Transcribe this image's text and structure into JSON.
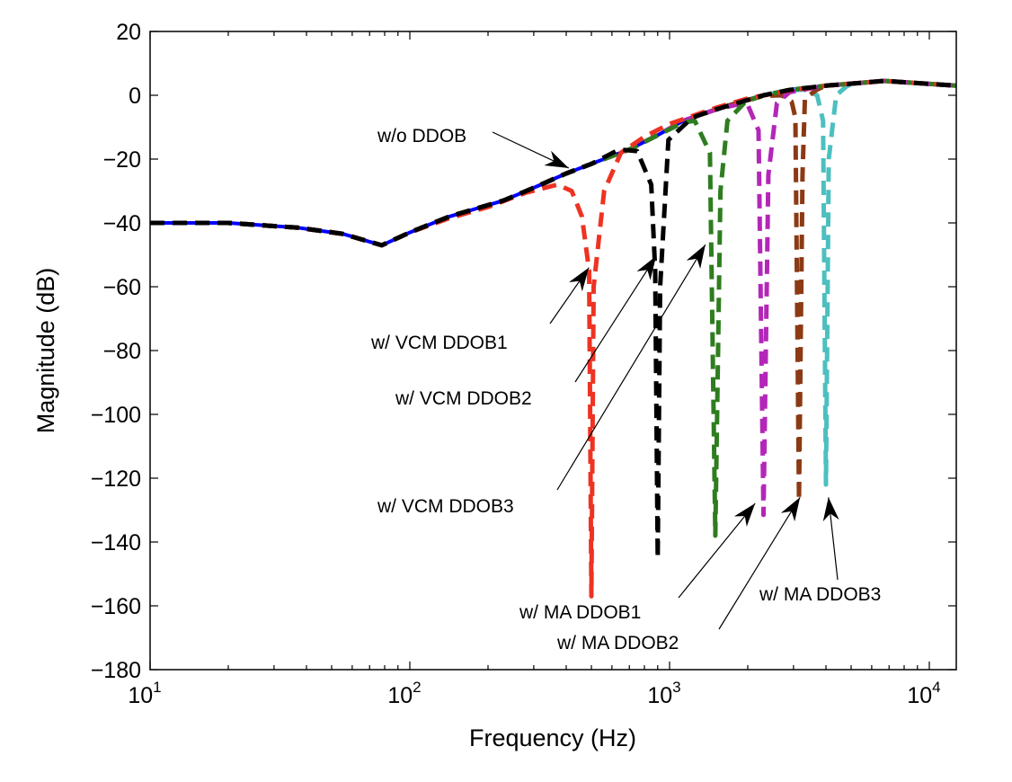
{
  "chart_data": {
    "type": "line",
    "title": "",
    "xlabel": "Frequency (Hz)",
    "ylabel": "Magnitude (dB)",
    "xscale": "log",
    "xlim": [
      10,
      12700
    ],
    "ylim": [
      -180,
      20
    ],
    "grid": false,
    "legend": "none",
    "x_ticks": [
      {
        "value": 10,
        "base": "10",
        "exp": "1"
      },
      {
        "value": 100,
        "base": "10",
        "exp": "2"
      },
      {
        "value": 1000,
        "base": "10",
        "exp": "3"
      },
      {
        "value": 10000,
        "base": "10",
        "exp": "4"
      }
    ],
    "y_ticks": [
      {
        "value": 20,
        "label": "20"
      },
      {
        "value": 0,
        "label": "0"
      },
      {
        "value": -20,
        "label": "−20"
      },
      {
        "value": -40,
        "label": "−40"
      },
      {
        "value": -60,
        "label": "−60"
      },
      {
        "value": -80,
        "label": "−80"
      },
      {
        "value": -100,
        "label": "−100"
      },
      {
        "value": -120,
        "label": "−120"
      },
      {
        "value": -140,
        "label": "−140"
      },
      {
        "value": -160,
        "label": "−160"
      },
      {
        "value": -180,
        "label": "−180"
      }
    ],
    "series": [
      {
        "name": "w/o DDOB",
        "color": "#0000ff",
        "style": "solid",
        "x": [
          10,
          20,
          37,
          55,
          78,
          100,
          142,
          229,
          300,
          400,
          500,
          700,
          900,
          1130,
          1500,
          1800,
          2300,
          2900,
          4000,
          5100,
          6700,
          12700
        ],
        "y": [
          -40,
          -40,
          -41.5,
          -43.4,
          -47,
          -43,
          -38,
          -33,
          -29,
          -24.5,
          -21.5,
          -17,
          -12.5,
          -8,
          -4.5,
          -2.5,
          0,
          1.7,
          3,
          3.7,
          4.5,
          3
        ]
      },
      {
        "name": "w/ MA DDOB3",
        "color": "#4dbfbf",
        "style": "dashed",
        "x": [
          10,
          20,
          37,
          55,
          78,
          100,
          142,
          229,
          300,
          400,
          500,
          700,
          900,
          1130,
          1500,
          1800,
          2300,
          2900,
          3300,
          3700,
          3900,
          4000,
          4100,
          4380,
          4800,
          5100,
          6700,
          12700
        ],
        "y": [
          -40,
          -40,
          -41.5,
          -43.4,
          -47,
          -43,
          -38,
          -33,
          -29,
          -24.5,
          -21.5,
          -17,
          -12.5,
          -8,
          -4.5,
          -2.5,
          0,
          1.5,
          1.8,
          0,
          -8,
          -122,
          -20,
          0,
          2.8,
          3.7,
          4.5,
          3
        ]
      },
      {
        "name": "w/ MA DDOB2",
        "color": "#8b3a14",
        "style": "dashed",
        "x": [
          10,
          20,
          37,
          55,
          78,
          100,
          142,
          229,
          300,
          400,
          500,
          700,
          900,
          1130,
          1500,
          1800,
          2300,
          2700,
          2950,
          3050,
          3150,
          3250,
          3320,
          3700,
          4000,
          5100,
          6700,
          12700
        ],
        "y": [
          -40,
          -40,
          -41.5,
          -43.4,
          -47,
          -43,
          -38,
          -33,
          -29,
          -24.5,
          -21.5,
          -17,
          -12.5,
          -8,
          -4.5,
          -2.5,
          -0.2,
          0,
          -2,
          -7,
          -127,
          -25,
          -1,
          1.8,
          3,
          3.7,
          4.5,
          3
        ]
      },
      {
        "name": "w/ MA DDOB1",
        "color": "#b327b8",
        "style": "dashed",
        "x": [
          10,
          20,
          37,
          55,
          78,
          100,
          142,
          229,
          300,
          400,
          500,
          700,
          900,
          1130,
          1500,
          1800,
          2000,
          2200,
          2300,
          2400,
          2590,
          2900,
          4000,
          5100,
          6700,
          12700
        ],
        "y": [
          -40,
          -40,
          -41.5,
          -43.4,
          -47,
          -43,
          -38,
          -33,
          -29,
          -24.5,
          -21.5,
          -17,
          -12.5,
          -8,
          -4.5,
          -3,
          -3,
          -11,
          -131.5,
          -25,
          -2.5,
          1,
          3,
          3.7,
          4.5,
          3
        ]
      },
      {
        "name": "w/ VCM DDOB3",
        "color": "#2e7d1f",
        "style": "dashed",
        "x": [
          10,
          20,
          37,
          55,
          78,
          100,
          142,
          229,
          300,
          400,
          500,
          700,
          900,
          1130,
          1250,
          1430,
          1500,
          1570,
          1670,
          1960,
          2300,
          2900,
          4000,
          5100,
          6700,
          12700
        ],
        "y": [
          -40,
          -40,
          -41.5,
          -43.4,
          -47,
          -43,
          -38,
          -33,
          -29,
          -24.5,
          -21.5,
          -17,
          -12.5,
          -8.5,
          -8,
          -18,
          -138,
          -30,
          -8,
          -2,
          0,
          1.7,
          3,
          3.7,
          4.5,
          3
        ]
      },
      {
        "name": "w/ VCM DDOB1",
        "color": "#ee3322",
        "style": "dashed",
        "x": [
          10,
          20,
          37,
          55,
          78,
          100,
          142,
          200,
          280,
          370,
          420,
          460,
          490,
          500,
          510,
          560,
          650,
          800,
          1000,
          1500,
          2000,
          2900,
          4000,
          5100,
          6700,
          12700
        ],
        "y": [
          -40,
          -40,
          -41.5,
          -43.4,
          -47,
          -43,
          -38.5,
          -35,
          -30.5,
          -28,
          -30,
          -38,
          -55,
          -157,
          -60,
          -30,
          -18,
          -13,
          -9,
          -4,
          -1,
          1.5,
          3,
          3.7,
          4.5,
          3
        ]
      },
      {
        "name": "w/ VCM DDOB2",
        "color": "#000000",
        "style": "dashed",
        "x": [
          10,
          20,
          37,
          55,
          78,
          100,
          142,
          229,
          300,
          400,
          500,
          640,
          750,
          850,
          880,
          900,
          920,
          990,
          1220,
          1500,
          2300,
          2900,
          4000,
          5100,
          6700,
          12700
        ],
        "y": [
          -40,
          -40,
          -41.5,
          -43.4,
          -47,
          -43,
          -38,
          -33,
          -29,
          -24.5,
          -21.5,
          -17,
          -17.5,
          -28,
          -55,
          -145,
          -60,
          -14,
          -7,
          -4.5,
          0,
          1.7,
          3,
          3.7,
          4.5,
          3
        ]
      }
    ],
    "annotations": [
      {
        "text": "w/o DDOB",
        "target_x": 409,
        "target_y": -22.8
      },
      {
        "text": "w/ VCM DDOB1",
        "target_x": 489,
        "target_y": -54
      },
      {
        "text": "w/ VCM DDOB2",
        "target_x": 888,
        "target_y": -50.4
      },
      {
        "text": "w/ VCM DDOB3",
        "target_x": 1374,
        "target_y": -46.8
      },
      {
        "text": "w/ MA DDOB1",
        "target_x": 2135,
        "target_y": -127.9
      },
      {
        "text": "w/ MA DDOB2",
        "target_x": 3178,
        "target_y": -126
      },
      {
        "text": "w/ MA DDOB3",
        "target_x": 4090,
        "target_y": -126
      }
    ]
  }
}
